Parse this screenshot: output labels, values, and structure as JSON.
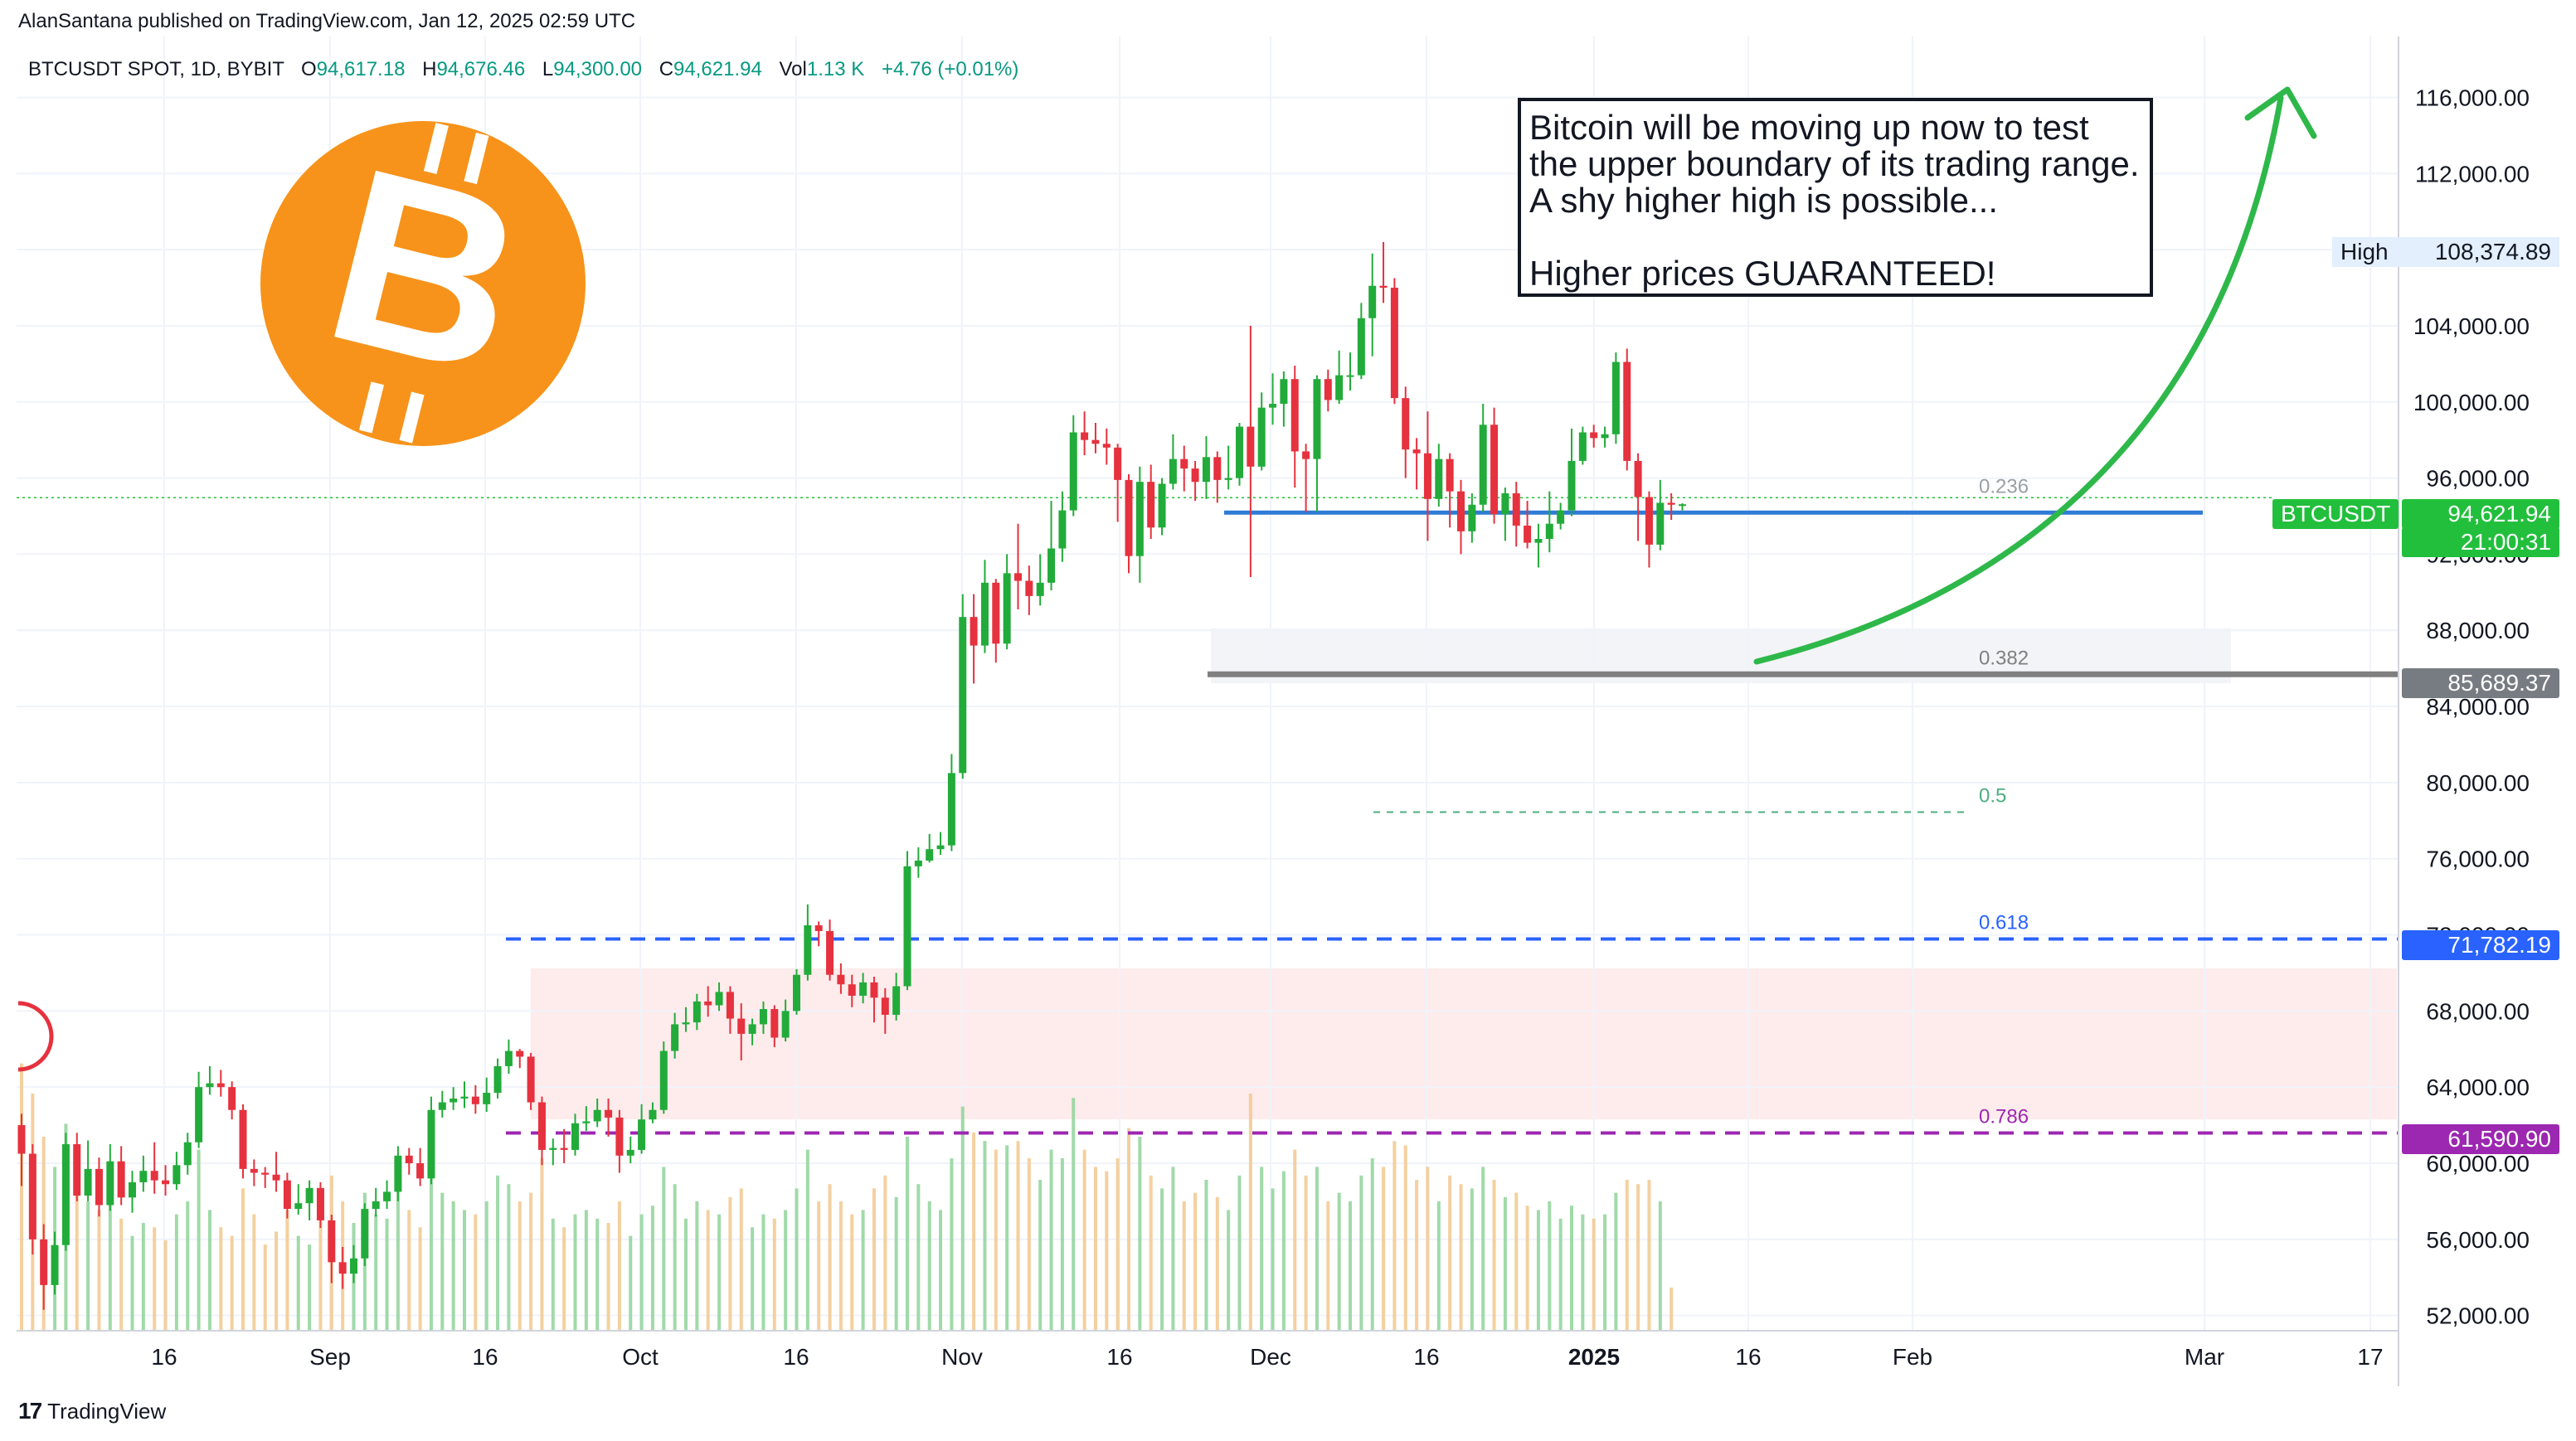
{
  "header": {
    "published_by": "AlanSantana published on TradingView.com, Jan 12, 2025 02:59 UTC"
  },
  "legend": {
    "symbol": "BTCUSDT SPOT, 1D, BYBIT",
    "open_label": "O",
    "open": "94,617.18",
    "high_label": "H",
    "high": "94,676.46",
    "low_label": "L",
    "low": "94,300.00",
    "close_label": "C",
    "close": "94,621.94",
    "vol_label": "Vol",
    "vol": "1.13 K",
    "change": "+4.76 (+0.01%)"
  },
  "annotation": {
    "line1": "Bitcoin will be moving up now to test",
    "line2": "the upper boundary of its trading range.",
    "line3": "A shy higher high is possible...",
    "line4": "Higher prices GUARANTEED!"
  },
  "price_axis": {
    "current_symbol": "BTCUSDT",
    "current_price": "94,621.94",
    "countdown": "21:00:31",
    "high_label": "High",
    "high_value": "108,374.89",
    "level_0382": "85,689.37",
    "level_0618": "71,782.19",
    "level_0786": "61,590.90"
  },
  "footer": {
    "brand": "TradingView",
    "brand_mark": "17"
  },
  "colors": {
    "up": "#22ab3a",
    "down": "#e5323e",
    "fib_0236": "#9aa0a6",
    "fib_0382": "#808080",
    "fib_05": "#4caf80",
    "fib_0618": "#2962ff",
    "fib_0786": "#9c27b0",
    "current_price_line": "#2f7bd6",
    "arrow": "#2eb84a",
    "bitcoin_orange": "#f7931a"
  },
  "icons": {
    "logo": "bitcoin-logo-icon",
    "brand": "tradingview-logo-icon"
  },
  "chart_data": {
    "type": "candlestick",
    "y_ticks": [
      "116,000.00",
      "112,000.00",
      "108,000.00",
      "104,000.00",
      "100,000.00",
      "96,000.00",
      "92,000.00",
      "88,000.00",
      "84,000.00",
      "80,000.00",
      "76,000.00",
      "72,000.00",
      "68,000.00",
      "64,000.00",
      "60,000.00",
      "56,000.00",
      "52,000.00"
    ],
    "y_tick_values": [
      116000,
      112000,
      108000,
      104000,
      100000,
      96000,
      92000,
      88000,
      84000,
      80000,
      76000,
      72000,
      68000,
      64000,
      60000,
      56000,
      52000
    ],
    "ylim": [
      51200,
      119200
    ],
    "x_ticks": [
      "16",
      "Sep",
      "16",
      "Oct",
      "16",
      "Nov",
      "16",
      "Dec",
      "16",
      "2025",
      "16",
      "Feb",
      "Mar",
      "17"
    ],
    "fib_levels": [
      {
        "ratio": "0.236",
        "price": 94700
      },
      {
        "ratio": "0.382",
        "price": 85689.37
      },
      {
        "ratio": "0.5",
        "price": 78450
      },
      {
        "ratio": "0.618",
        "price": 71782.19
      },
      {
        "ratio": "0.786",
        "price": 61590.9
      }
    ],
    "candles": [
      [
        62000,
        60500,
        62600,
        58800
      ],
      [
        60500,
        56000,
        61000,
        55200
      ],
      [
        56000,
        53600,
        56800,
        52300
      ],
      [
        53600,
        55700,
        56400,
        53100
      ],
      [
        55700,
        61000,
        61600,
        55400
      ],
      [
        61000,
        58300,
        61600,
        58000
      ],
      [
        58300,
        59700,
        61200,
        58000
      ],
      [
        59700,
        57800,
        60300,
        57200
      ],
      [
        57800,
        60100,
        61000,
        57500
      ],
      [
        60100,
        58200,
        60900,
        57800
      ],
      [
        58200,
        59000,
        59600,
        57400
      ],
      [
        59000,
        59600,
        60400,
        58500
      ],
      [
        59600,
        59100,
        61100,
        58400
      ],
      [
        59100,
        58900,
        59900,
        58300
      ],
      [
        58900,
        59900,
        60600,
        58600
      ],
      [
        59900,
        61100,
        61600,
        59400
      ],
      [
        61100,
        64000,
        64800,
        60800
      ],
      [
        64000,
        64200,
        65100,
        63600
      ],
      [
        64200,
        64000,
        64900,
        63500
      ],
      [
        64000,
        62800,
        64300,
        62300
      ],
      [
        62800,
        59700,
        63100,
        59200
      ],
      [
        59700,
        59500,
        60200,
        58800
      ],
      [
        59500,
        59400,
        59800,
        58700
      ],
      [
        59400,
        59100,
        60600,
        58500
      ],
      [
        59100,
        57600,
        59500,
        57100
      ],
      [
        57600,
        57900,
        58900,
        57300
      ],
      [
        57900,
        58700,
        59100,
        57000
      ],
      [
        58700,
        57000,
        59000,
        56600
      ],
      [
        57000,
        54800,
        57300,
        53700
      ],
      [
        54800,
        54200,
        55600,
        53400
      ],
      [
        54200,
        55000,
        55700,
        53700
      ],
      [
        55000,
        57600,
        57900,
        54600
      ],
      [
        57600,
        58000,
        58700,
        57200
      ],
      [
        58000,
        58500,
        59100,
        57600
      ],
      [
        58500,
        60400,
        60900,
        58000
      ],
      [
        60400,
        60000,
        60800,
        59400
      ],
      [
        60000,
        59200,
        60800,
        58800
      ],
      [
        59200,
        62800,
        63500,
        58900
      ],
      [
        62800,
        63200,
        63800,
        62400
      ],
      [
        63200,
        63400,
        64000,
        62800
      ],
      [
        63400,
        63500,
        64300,
        62900
      ],
      [
        63500,
        63100,
        64100,
        62600
      ],
      [
        63100,
        63700,
        64500,
        62700
      ],
      [
        63700,
        65100,
        65500,
        63400
      ],
      [
        65100,
        65900,
        66500,
        64700
      ],
      [
        65900,
        65600,
        66000,
        65000
      ],
      [
        65600,
        63200,
        65800,
        62800
      ],
      [
        63200,
        60700,
        63500,
        59900
      ],
      [
        60700,
        60800,
        61300,
        59900
      ],
      [
        60800,
        60700,
        61800,
        60000
      ],
      [
        60700,
        62100,
        62600,
        60400
      ],
      [
        62100,
        62200,
        63000,
        61700
      ],
      [
        62200,
        62800,
        63400,
        61900
      ],
      [
        62800,
        62400,
        63400,
        61400
      ],
      [
        62400,
        60400,
        62800,
        59500
      ],
      [
        60400,
        60700,
        61400,
        60000
      ],
      [
        60700,
        62300,
        63100,
        60500
      ],
      [
        62300,
        62800,
        63200,
        62100
      ],
      [
        62800,
        65900,
        66400,
        62600
      ],
      [
        65900,
        67300,
        67900,
        65500
      ],
      [
        67300,
        67400,
        68200,
        66900
      ],
      [
        67400,
        68500,
        68900,
        67000
      ],
      [
        68500,
        68300,
        69300,
        67700
      ],
      [
        68300,
        69000,
        69500,
        68000
      ],
      [
        69000,
        67600,
        69300,
        66800
      ],
      [
        67600,
        66800,
        68400,
        65400
      ],
      [
        66800,
        67300,
        67600,
        66200
      ],
      [
        67300,
        68100,
        68500,
        66800
      ],
      [
        68100,
        66600,
        68300,
        66100
      ],
      [
        66600,
        68000,
        68600,
        66400
      ],
      [
        68000,
        69900,
        70200,
        67800
      ],
      [
        69900,
        72500,
        73600,
        69600
      ],
      [
        72500,
        72200,
        72700,
        71400
      ],
      [
        72200,
        69900,
        72800,
        69600
      ],
      [
        69900,
        69400,
        70500,
        68900
      ],
      [
        69400,
        68800,
        69900,
        68200
      ],
      [
        68800,
        69500,
        70000,
        68400
      ],
      [
        69500,
        68700,
        69800,
        67400
      ],
      [
        68700,
        67800,
        69200,
        66800
      ],
      [
        67800,
        69300,
        70000,
        67500
      ],
      [
        69300,
        75600,
        76400,
        69100
      ],
      [
        75600,
        75900,
        76600,
        75000
      ],
      [
        75900,
        76500,
        77300,
        75800
      ],
      [
        76500,
        76700,
        77400,
        76200
      ],
      [
        76700,
        80500,
        81500,
        76400
      ],
      [
        80500,
        88700,
        89900,
        80200
      ],
      [
        88700,
        87200,
        89900,
        85200
      ],
      [
        87200,
        90500,
        91700,
        86800
      ],
      [
        90500,
        87300,
        90700,
        86300
      ],
      [
        87300,
        91000,
        92000,
        87000
      ],
      [
        91000,
        90600,
        93600,
        89100
      ],
      [
        90600,
        89800,
        91400,
        88800
      ],
      [
        89800,
        90500,
        92000,
        89300
      ],
      [
        90500,
        92300,
        94800,
        90100
      ],
      [
        92300,
        94300,
        95300,
        91600
      ],
      [
        94300,
        98400,
        99300,
        94000
      ],
      [
        98400,
        98000,
        99500,
        97200
      ],
      [
        98000,
        97800,
        98900,
        97300
      ],
      [
        97800,
        97600,
        98600,
        96700
      ],
      [
        97600,
        95900,
        97800,
        93700
      ],
      [
        95900,
        91900,
        96200,
        91000
      ],
      [
        91900,
        95800,
        96600,
        90500
      ],
      [
        95800,
        93400,
        96700,
        92800
      ],
      [
        93400,
        95700,
        96000,
        93000
      ],
      [
        95700,
        97000,
        98300,
        95400
      ],
      [
        97000,
        96500,
        97700,
        95300
      ],
      [
        96500,
        95800,
        96900,
        94800
      ],
      [
        95800,
        97100,
        98200,
        94900
      ],
      [
        97100,
        95900,
        97400,
        94700
      ],
      [
        95900,
        96000,
        97700,
        95400
      ],
      [
        96000,
        98700,
        98900,
        95600
      ],
      [
        98700,
        96600,
        104000,
        90800
      ],
      [
        96600,
        99700,
        100500,
        96400
      ],
      [
        99700,
        99900,
        101500,
        98800
      ],
      [
        99900,
        101200,
        101600,
        98700
      ],
      [
        101200,
        97400,
        101900,
        95500
      ],
      [
        97400,
        97000,
        97800,
        94200
      ],
      [
        97000,
        101200,
        101400,
        94200
      ],
      [
        101200,
        100100,
        101700,
        99500
      ],
      [
        100100,
        101400,
        102700,
        99900
      ],
      [
        101400,
        101400,
        102600,
        100600
      ],
      [
        101400,
        104400,
        105200,
        101200
      ],
      [
        104400,
        106100,
        107800,
        102400
      ],
      [
        106100,
        106000,
        108400,
        105200
      ],
      [
        106000,
        100200,
        106500,
        99900
      ],
      [
        100200,
        97500,
        100800,
        96000
      ],
      [
        97500,
        97300,
        98100,
        95400
      ],
      [
        97300,
        94900,
        99500,
        92700
      ],
      [
        94900,
        97000,
        97800,
        94500
      ],
      [
        97000,
        95300,
        97300,
        93400
      ],
      [
        95300,
        93200,
        95900,
        92000
      ],
      [
        93200,
        94600,
        95200,
        92600
      ],
      [
        94600,
        98800,
        99900,
        94200
      ],
      [
        98800,
        94100,
        99700,
        93600
      ],
      [
        94100,
        95200,
        95500,
        92700
      ],
      [
        95200,
        93500,
        95800,
        92400
      ],
      [
        93500,
        92600,
        94800,
        92300
      ],
      [
        92600,
        92800,
        93600,
        91300
      ],
      [
        92800,
        93600,
        95300,
        92100
      ],
      [
        93600,
        94300,
        94700,
        93300
      ],
      [
        94300,
        96900,
        98600,
        94000
      ],
      [
        96900,
        98400,
        98700,
        96700
      ],
      [
        98400,
        98100,
        98800,
        97600
      ],
      [
        98100,
        98300,
        98700,
        97600
      ],
      [
        98300,
        102100,
        102600,
        97800
      ],
      [
        102100,
        96900,
        102800,
        96400
      ],
      [
        96900,
        95000,
        97300,
        92700
      ],
      [
        95000,
        92500,
        95300,
        91300
      ],
      [
        92500,
        94700,
        95900,
        92200
      ],
      [
        94700,
        94600,
        95200,
        93800
      ],
      [
        94600,
        94622,
        94676,
        94300
      ]
    ],
    "volumes": [
      0.62,
      0.55,
      0.45,
      0.38,
      0.48,
      0.33,
      0.3,
      0.28,
      0.34,
      0.26,
      0.22,
      0.25,
      0.24,
      0.21,
      0.27,
      0.3,
      0.42,
      0.28,
      0.24,
      0.22,
      0.33,
      0.27,
      0.2,
      0.23,
      0.28,
      0.22,
      0.2,
      0.26,
      0.36,
      0.3,
      0.25,
      0.32,
      0.27,
      0.26,
      0.34,
      0.28,
      0.24,
      0.4,
      0.32,
      0.3,
      0.28,
      0.27,
      0.3,
      0.36,
      0.34,
      0.3,
      0.32,
      0.4,
      0.26,
      0.24,
      0.27,
      0.28,
      0.26,
      0.25,
      0.3,
      0.22,
      0.27,
      0.29,
      0.38,
      0.34,
      0.26,
      0.3,
      0.28,
      0.27,
      0.31,
      0.33,
      0.24,
      0.27,
      0.26,
      0.28,
      0.33,
      0.42,
      0.3,
      0.34,
      0.3,
      0.27,
      0.28,
      0.33,
      0.36,
      0.31,
      0.45,
      0.34,
      0.3,
      0.28,
      0.4,
      0.52,
      0.46,
      0.44,
      0.42,
      0.43,
      0.44,
      0.4,
      0.35,
      0.42,
      0.4,
      0.54,
      0.42,
      0.38,
      0.37,
      0.4,
      0.47,
      0.45,
      0.36,
      0.33,
      0.38,
      0.3,
      0.32,
      0.35,
      0.31,
      0.28,
      0.36,
      0.55,
      0.38,
      0.33,
      0.37,
      0.42,
      0.36,
      0.38,
      0.3,
      0.32,
      0.3,
      0.36,
      0.4,
      0.38,
      0.44,
      0.43,
      0.35,
      0.38,
      0.3,
      0.36,
      0.34,
      0.33,
      0.38,
      0.35,
      0.31,
      0.32,
      0.29,
      0.28,
      0.3,
      0.26,
      0.29,
      0.27,
      0.26,
      0.27,
      0.32,
      0.35,
      0.34,
      0.35,
      0.3,
      0.1
    ]
  }
}
